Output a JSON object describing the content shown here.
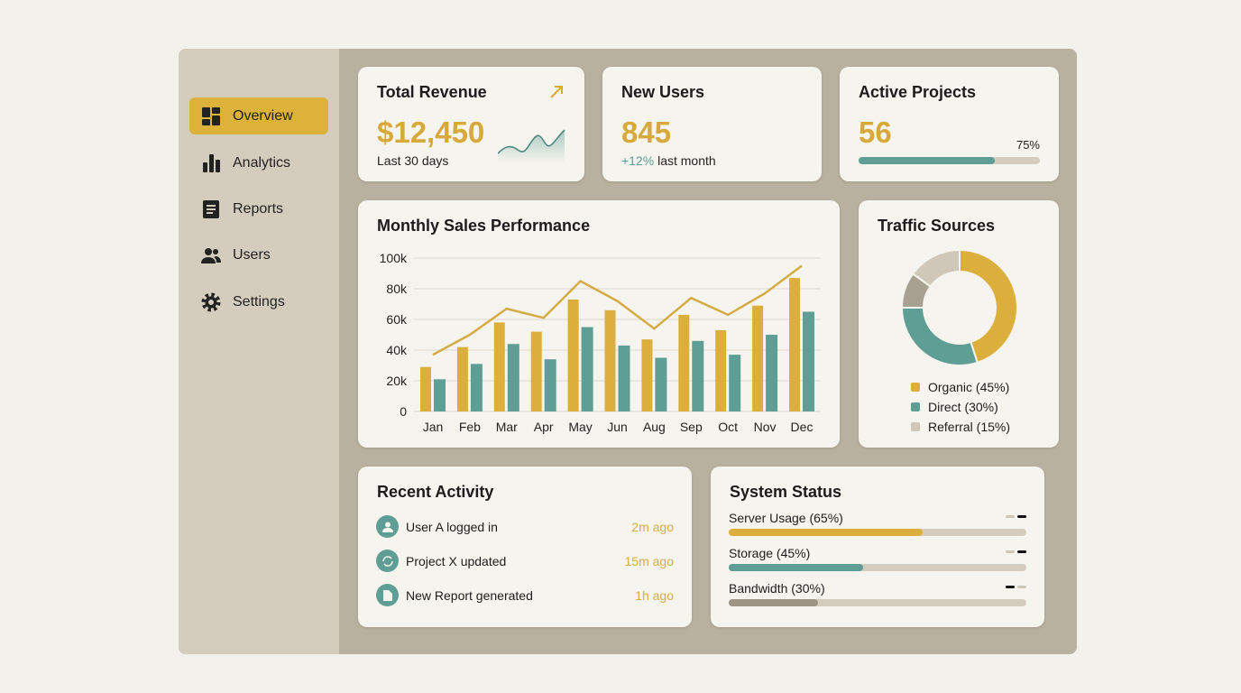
{
  "sidebar": {
    "items": [
      {
        "label": "Overview",
        "icon": "dashboard-icon",
        "active": true
      },
      {
        "label": "Analytics",
        "icon": "bar-chart-icon"
      },
      {
        "label": "Reports",
        "icon": "document-icon"
      },
      {
        "label": "Users",
        "icon": "users-icon"
      },
      {
        "label": "Settings",
        "icon": "gear-icon"
      }
    ]
  },
  "revenue": {
    "title": "Total Revenue",
    "value": "$12,450",
    "sub": "Last 30 days",
    "icon": "trend-up-arrow-icon"
  },
  "users": {
    "title": "New Users",
    "value": "845",
    "change": "+12%",
    "sub": " last month"
  },
  "projects": {
    "title": "Active Projects",
    "value": "56",
    "progress_label": "75%",
    "progress": 75
  },
  "sales": {
    "title": "Monthly Sales Performance"
  },
  "chart_data": {
    "type": "bar",
    "title": "Monthly Sales Performance",
    "categories": [
      "Jan",
      "Feb",
      "Mar",
      "Apr",
      "May",
      "Jun",
      "Aug",
      "Sep",
      "Oct",
      "Nov",
      "Dec"
    ],
    "yticks": [
      "0",
      "20k",
      "40k",
      "60k",
      "80k",
      "100k"
    ],
    "ylim": [
      0,
      100000
    ],
    "grid": true,
    "series": [
      {
        "type": "bar",
        "color": "#dcae3c",
        "values": [
          29000,
          42000,
          58000,
          52000,
          73000,
          66000,
          47000,
          63000,
          53000,
          69000,
          87000
        ]
      },
      {
        "type": "bar",
        "color": "#5e9e95",
        "values": [
          21000,
          31000,
          44000,
          34000,
          55000,
          43000,
          35000,
          46000,
          37000,
          50000,
          65000
        ]
      },
      {
        "type": "line",
        "color": "#d4ab45",
        "values": [
          37000,
          50000,
          67000,
          61000,
          85000,
          72000,
          54000,
          74000,
          63000,
          77000,
          95000
        ]
      }
    ]
  },
  "traffic": {
    "title": "Traffic Sources",
    "chart_data": {
      "type": "pie",
      "slices": [
        {
          "label": "Organic (45%)",
          "value": 45,
          "color": "#dcae3c"
        },
        {
          "label": "Direct (30%)",
          "value": 30,
          "color": "#5e9e95"
        },
        {
          "label": "",
          "value": 10,
          "color": "#a8a090"
        },
        {
          "label": "Referral (15%)",
          "value": 15,
          "color": "#cfc7b8"
        }
      ]
    }
  },
  "activity": {
    "title": "Recent Activity",
    "items": [
      {
        "text": "User A logged in",
        "time": "2m ago",
        "icon": "user-icon"
      },
      {
        "text": "Project X updated",
        "time": "15m ago",
        "icon": "refresh-icon"
      },
      {
        "text": "New Report generated",
        "time": "1h ago",
        "icon": "file-icon"
      }
    ]
  },
  "status": {
    "title": "System Status",
    "items": [
      {
        "label": "Server Usage (65%)",
        "value": 65,
        "color": "#dcae3c"
      },
      {
        "label": "Storage (45%)",
        "value": 45,
        "color": "#5e9e95"
      },
      {
        "label": "Bandwidth (30%)",
        "value": 30,
        "color": "#9d9484"
      }
    ]
  }
}
